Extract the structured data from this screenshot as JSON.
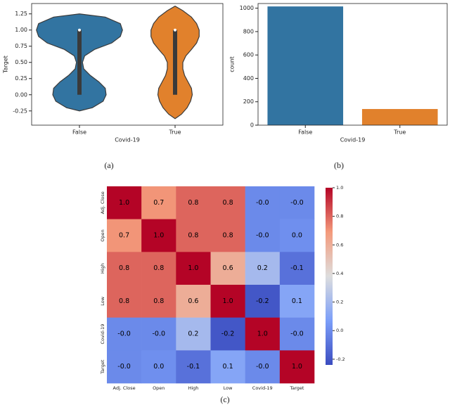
{
  "chart_data": [
    {
      "type": "violin",
      "caption": "(a)",
      "xlabel": "Covid-19",
      "ylabel": "Target",
      "categories": [
        "False",
        "True"
      ],
      "ylim": [
        -0.47,
        1.41
      ],
      "yticks": [
        -0.25,
        {
          "value": 0,
          "label": "0.00"
        },
        0.25,
        {
          "value": 0.5,
          "label": "0.50"
        },
        0.75,
        {
          "value": 1,
          "label": "1.00"
        },
        1.25
      ],
      "violins": [
        {
          "color": "#3274a1",
          "y": [
            -0.25,
            -0.2,
            -0.1,
            0,
            0.1,
            0.2,
            0.3,
            0.4,
            0.5,
            0.6,
            0.7,
            0.8,
            0.9,
            1,
            1.1,
            1.2,
            1.25
          ],
          "density": [
            0,
            0.3,
            0.55,
            0.62,
            0.6,
            0.45,
            0.25,
            0.1,
            0.07,
            0.12,
            0.35,
            0.75,
            0.95,
            1,
            0.95,
            0.6,
            0
          ],
          "q1": 0,
          "median": 1,
          "q3": 1
        },
        {
          "color": "#e1812c",
          "y": [
            -0.37,
            -0.3,
            -0.2,
            -0.1,
            0,
            0.1,
            0.2,
            0.3,
            0.4,
            0.5,
            0.6,
            0.7,
            0.8,
            0.9,
            1,
            1.1,
            1.2,
            1.3,
            1.37
          ],
          "density": [
            0,
            0.15,
            0.28,
            0.36,
            0.4,
            0.38,
            0.3,
            0.22,
            0.18,
            0.18,
            0.25,
            0.38,
            0.5,
            0.56,
            0.56,
            0.5,
            0.38,
            0.18,
            0
          ],
          "q1": 0,
          "median": 1,
          "q3": 1
        }
      ]
    },
    {
      "type": "bar",
      "caption": "(b)",
      "xlabel": "Covid-19",
      "ylabel": "count",
      "categories": [
        "False",
        "True"
      ],
      "values": [
        1015,
        138
      ],
      "colors": [
        "#3274a1",
        "#e1812c"
      ],
      "ylim": [
        0,
        1040
      ],
      "yticks": [
        0,
        200,
        400,
        600,
        800,
        1000
      ]
    },
    {
      "type": "heatmap",
      "caption": "(c)",
      "colormap": "coolwarm",
      "x_categories": [
        "Adj. Close",
        "Open",
        "High",
        "Low",
        "Covid-19",
        "Target"
      ],
      "y_categories": [
        "Adj. Close",
        "Open",
        "High",
        "Low",
        "Covid-19",
        "Target"
      ],
      "values": [
        [
          1,
          0.7,
          0.8,
          0.8,
          -0.01,
          -0.01
        ],
        [
          0.7,
          1,
          0.8,
          0.8,
          -0.01,
          0.01
        ],
        [
          0.8,
          0.8,
          1,
          0.6,
          0.2,
          -0.1
        ],
        [
          0.8,
          0.8,
          0.6,
          1,
          -0.2,
          0.1
        ],
        [
          -0.01,
          -0.01,
          0.2,
          -0.2,
          1,
          -0.01
        ],
        [
          -0.01,
          0.01,
          -0.1,
          0.1,
          -0.01,
          1
        ]
      ],
      "value_labels": [
        [
          "1.0",
          "0.7",
          "0.8",
          "0.8",
          "-0.0",
          "-0.0"
        ],
        [
          "0.7",
          "1.0",
          "0.8",
          "0.8",
          "-0.0",
          "0.0"
        ],
        [
          "0.8",
          "0.8",
          "1.0",
          "0.6",
          "0.2",
          "-0.1"
        ],
        [
          "0.8",
          "0.8",
          "0.6",
          "1.0",
          "-0.2",
          "0.1"
        ],
        [
          "-0.0",
          "-0.0",
          "0.2",
          "-0.2",
          "1.0",
          "-0.0"
        ],
        [
          "-0.0",
          "0.0",
          "-0.1",
          "0.1",
          "-0.0",
          "1.0"
        ]
      ],
      "clim": [
        -0.24,
        1
      ],
      "colorbar_ticks": [
        {
          "value": 1,
          "label": "1.0"
        },
        0.8,
        0.6,
        0.4,
        0.2,
        {
          "value": 0,
          "label": "0.0"
        },
        -0.2
      ]
    }
  ]
}
